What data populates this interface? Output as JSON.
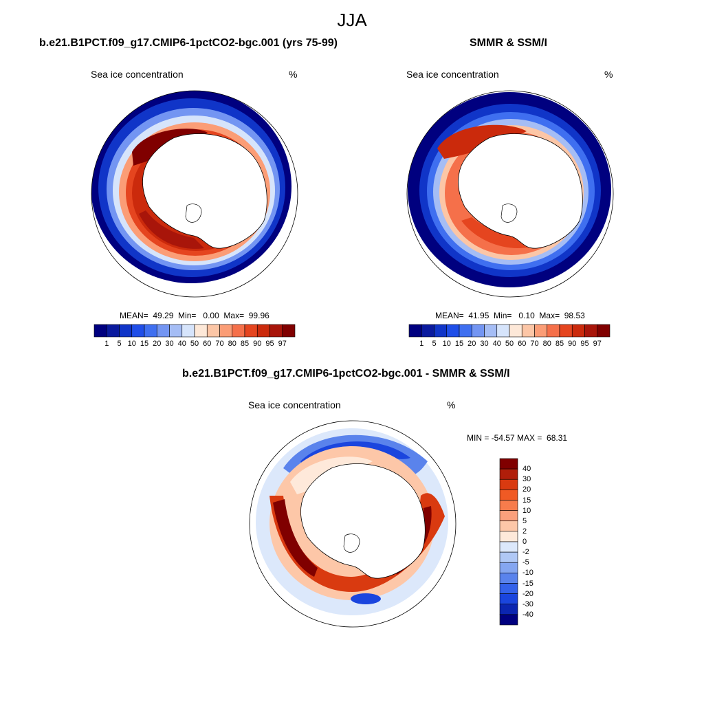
{
  "figure": {
    "title": "JJA"
  },
  "panels": {
    "model": {
      "title": "b.e21.B1PCT.f09_g17.CMIP6-1pctCO2-bgc.001 (yrs 75-99)",
      "variable": "Sea ice concentration",
      "units": "%",
      "stats": "MEAN=  49.29  Min=   0.00  Max=  99.96"
    },
    "obs": {
      "title": "SMMR & SSM/I",
      "variable": "Sea ice concentration",
      "units": "%",
      "stats": "MEAN=  41.95  Min=   0.10  Max=  98.53"
    },
    "diff": {
      "title": "b.e21.B1PCT.f09_g17.CMIP6-1pctCO2-bgc.001 - SMMR & SSM/I",
      "variable": "Sea ice concentration",
      "units": "%",
      "stats": "MIN = -54.57 MAX =  68.31"
    }
  },
  "colorbar_conc": {
    "labels": [
      "1",
      "5",
      "10",
      "15",
      "20",
      "30",
      "40",
      "50",
      "60",
      "70",
      "80",
      "85",
      "90",
      "95",
      "97"
    ],
    "colors": [
      "#00007f",
      "#0a1a9e",
      "#1035c8",
      "#1f4ee8",
      "#3f6ff0",
      "#7395f2",
      "#a5bdf5",
      "#d6e4fb",
      "#fde8d8",
      "#fcc6a6",
      "#fb9d76",
      "#f5704a",
      "#e5451f",
      "#cb2a0c",
      "#a8150a",
      "#800000"
    ]
  },
  "colorbar_diff": {
    "labels": [
      "40",
      "30",
      "20",
      "15",
      "10",
      "5",
      "2",
      "0",
      "-2",
      "-5",
      "-10",
      "-15",
      "-20",
      "-30",
      "-40"
    ],
    "colors": [
      "#800000",
      "#b01e0a",
      "#d93a10",
      "#f05a24",
      "#f77c4c",
      "#fba07c",
      "#fdc7a8",
      "#fee9da",
      "#dce8fb",
      "#b0c8f5",
      "#85a6f0",
      "#5a83ec",
      "#3462ea",
      "#1a45de",
      "#0b25b0",
      "#00007f"
    ]
  }
}
